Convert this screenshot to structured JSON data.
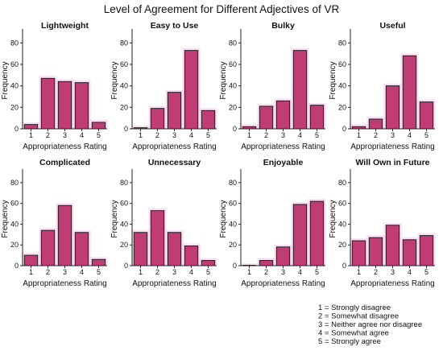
{
  "figure": {
    "title": "Level of Agreement for Different Adjectives of VR",
    "bar_color": "#bf3c74",
    "bar_edge_color": "#1e1e1e",
    "halo_color": "#f7c6ec"
  },
  "legend": {
    "lines": [
      "1 = Strongly disagree",
      "2 = Somewhat disagree",
      "3 = Neither agree nor disagree",
      "4 = Somewhat agree",
      "5 = Strongly agree"
    ]
  },
  "chart_data": [
    {
      "type": "bar",
      "title": "Lightweight",
      "categories": [
        "1",
        "2",
        "3",
        "4",
        "5"
      ],
      "values": [
        4,
        47,
        44,
        43,
        6
      ],
      "xlabel": "Appropriateness Rating",
      "ylabel": "Frequency",
      "ylim": [
        0,
        90
      ],
      "yticks": [
        0,
        20,
        40,
        60,
        80
      ]
    },
    {
      "type": "bar",
      "title": "Easy to Use",
      "categories": [
        "1",
        "2",
        "3",
        "4",
        "5"
      ],
      "values": [
        1,
        19,
        34,
        73,
        17
      ],
      "xlabel": "Appropriateness Rating",
      "ylabel": "Frequency",
      "ylim": [
        0,
        90
      ],
      "yticks": [
        0,
        20,
        40,
        60,
        80
      ]
    },
    {
      "type": "bar",
      "title": "Bulky",
      "categories": [
        "1",
        "2",
        "3",
        "4",
        "5"
      ],
      "values": [
        2,
        21,
        26,
        73,
        22
      ],
      "xlabel": "Appropriateness Rating",
      "ylabel": "Frequency",
      "ylim": [
        0,
        90
      ],
      "yticks": [
        0,
        20,
        40,
        60,
        80
      ]
    },
    {
      "type": "bar",
      "title": "Useful",
      "categories": [
        "1",
        "2",
        "3",
        "4",
        "5"
      ],
      "values": [
        2,
        9,
        40,
        68,
        25
      ],
      "xlabel": "Appropriateness Rating",
      "ylabel": "Frequency",
      "ylim": [
        0,
        90
      ],
      "yticks": [
        0,
        20,
        40,
        60,
        80
      ]
    },
    {
      "type": "bar",
      "title": "Complicated",
      "categories": [
        "1",
        "2",
        "3",
        "4",
        "5"
      ],
      "values": [
        10,
        34,
        58,
        32,
        6
      ],
      "xlabel": "Appropriateness Rating",
      "ylabel": "Frequency",
      "ylim": [
        0,
        90
      ],
      "yticks": [
        0,
        20,
        40,
        60,
        80
      ]
    },
    {
      "type": "bar",
      "title": "Unnecessary",
      "categories": [
        "1",
        "2",
        "3",
        "4",
        "5"
      ],
      "values": [
        32,
        53,
        32,
        19,
        5
      ],
      "xlabel": "Appropriateness Rating",
      "ylabel": "Frequency",
      "ylim": [
        0,
        90
      ],
      "yticks": [
        0,
        20,
        40,
        60,
        80
      ]
    },
    {
      "type": "bar",
      "title": "Enjoyable",
      "categories": [
        "1",
        "2",
        "3",
        "4",
        "5"
      ],
      "values": [
        0,
        5,
        18,
        59,
        62
      ],
      "xlabel": "Appropriateness Rating",
      "ylabel": "Frequency",
      "ylim": [
        0,
        90
      ],
      "yticks": [
        0,
        20,
        40,
        60,
        80
      ]
    },
    {
      "type": "bar",
      "title": "Will Own in Future",
      "categories": [
        "1",
        "2",
        "3",
        "4",
        "5"
      ],
      "values": [
        24,
        27,
        39,
        25,
        29
      ],
      "xlabel": "Appropriateness Rating",
      "ylabel": "Frequency",
      "ylim": [
        0,
        90
      ],
      "yticks": [
        0,
        20,
        40,
        60,
        80
      ]
    }
  ]
}
